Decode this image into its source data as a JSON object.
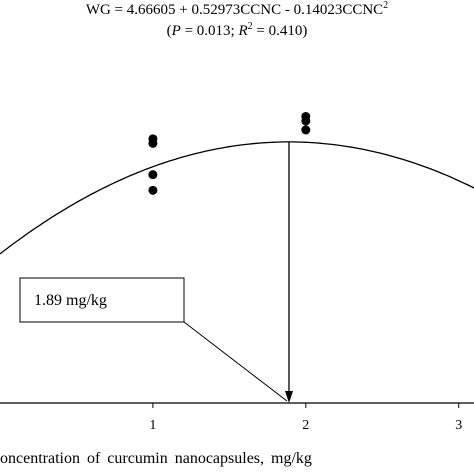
{
  "equation": {
    "line1_prefix": "WG = 4.66605 + 0.52973CCNC - 0.14023CCNC",
    "line1_exp": "2",
    "line2_open": "(",
    "line2_p": "P",
    "line2_pval": " = 0.013; ",
    "line2_r": "R",
    "line2_rexp": "2",
    "line2_rval": " = 0.410)"
  },
  "annotation": {
    "text": "1.89 mg/kg",
    "x": 1.89
  },
  "chart_data": {
    "type": "scatter",
    "title": "WG = 4.66605 + 0.52973CCNC - 0.14023CCNC² (P = 0.013; R² = 0.410)",
    "xlabel": "oncentration of curcumin nanocapsules, mg/kg",
    "ylabel": "",
    "xlim": [
      0,
      3.1
    ],
    "ylim": [
      4.0,
      5.3
    ],
    "x_ticks": [
      1,
      2,
      3
    ],
    "grid": false,
    "points": [
      {
        "x": 1,
        "y": 5.18
      },
      {
        "x": 1,
        "y": 5.16
      },
      {
        "x": 1,
        "y": 5.02
      },
      {
        "x": 1,
        "y": 4.95
      },
      {
        "x": 2,
        "y": 5.28
      },
      {
        "x": 2,
        "y": 5.26
      },
      {
        "x": 2,
        "y": 5.22
      }
    ],
    "fit": {
      "a": 4.66605,
      "b": 0.52973,
      "c": -0.14023
    }
  }
}
